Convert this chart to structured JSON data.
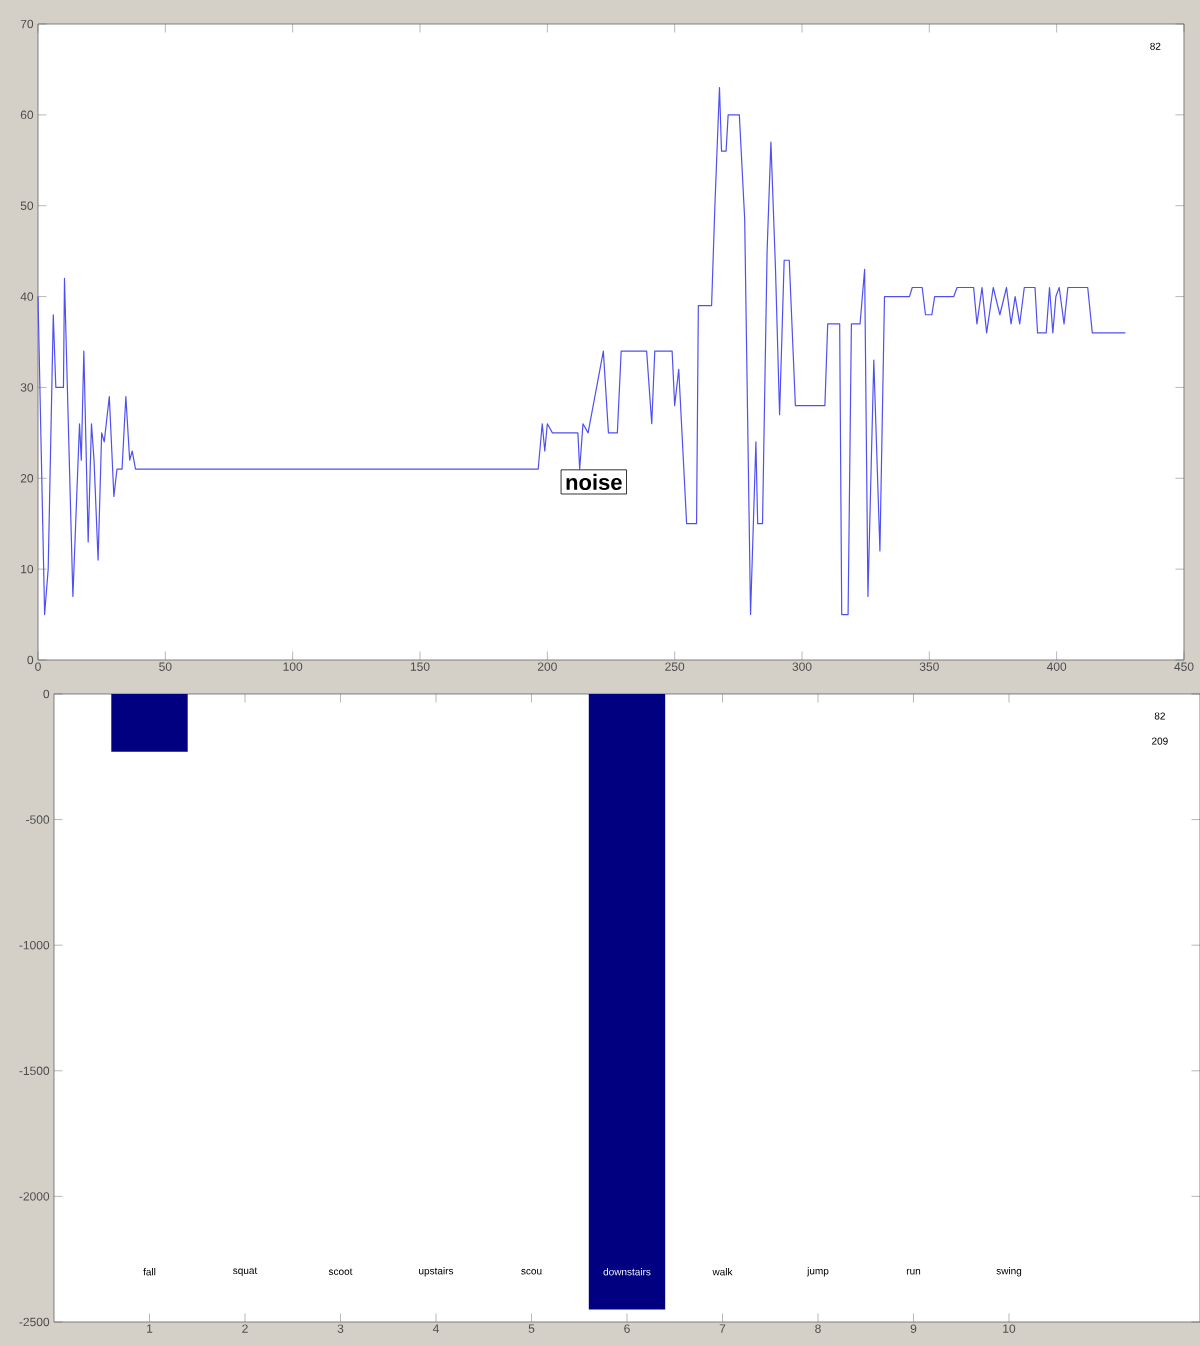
{
  "chart_data": [
    {
      "type": "line",
      "color": "#5050f0",
      "x": [
        0,
        2.6,
        4,
        6,
        7,
        10,
        10.4,
        13.7,
        16.3,
        17,
        18,
        19.7,
        21,
        22,
        23.6,
        25,
        26,
        28,
        29.8,
        31,
        33,
        34.5,
        36,
        37,
        38.3,
        196.4,
        198,
        199,
        200,
        202,
        212,
        212.7,
        214,
        216,
        222,
        224,
        227.5,
        229,
        239,
        241,
        242.2,
        249,
        250,
        251.6,
        254.7,
        258.6,
        259.3,
        264.5,
        265.8,
        267.6,
        268.4,
        270.2,
        271,
        275.4,
        277.5,
        279.8,
        281.9,
        282.6,
        284.5,
        286.3,
        287.8,
        289.6,
        291.2,
        293,
        295,
        297.4,
        309,
        310.1,
        314.8,
        315.6,
        318.1,
        319.4,
        322.8,
        324.6,
        325.9,
        328.2,
        330.6,
        332.4,
        342.2,
        343.3,
        347.2,
        348.5,
        351,
        352.1,
        359.6,
        360.9,
        367.4,
        368.7,
        370.7,
        372.5,
        375.1,
        377.7,
        380.3,
        382.1,
        383.7,
        385.5,
        387.3,
        391.5,
        392.5,
        395.9,
        397.2,
        398.5,
        399.7,
        401,
        402.9,
        404.4,
        412.2,
        414,
        427
      ],
      "values": [
        40,
        5,
        10,
        38,
        30,
        30,
        42,
        7,
        26,
        22,
        34,
        13,
        26,
        22,
        11,
        25,
        24,
        29,
        18,
        21,
        21,
        29,
        22,
        23,
        21,
        21,
        26,
        23,
        26,
        25,
        25,
        21,
        26,
        25,
        34,
        25,
        25,
        34,
        34,
        26,
        34,
        34,
        28,
        32,
        15,
        15,
        39,
        39,
        50,
        63,
        56,
        56,
        60,
        60,
        48.5,
        5,
        24,
        15,
        15,
        45,
        57,
        43,
        27,
        44,
        44,
        28,
        28,
        37,
        37,
        5,
        5,
        37,
        37,
        43,
        7,
        33,
        12,
        40,
        40,
        41,
        41,
        38,
        38,
        40,
        40,
        41,
        41,
        37,
        41,
        36,
        41,
        38,
        41,
        37,
        40,
        37,
        41,
        41,
        36,
        36,
        41,
        36,
        40,
        41,
        37,
        41,
        41,
        36,
        36
      ],
      "xlim": [
        0,
        450
      ],
      "xticks": [
        0,
        50,
        100,
        150,
        200,
        250,
        300,
        350,
        400,
        450
      ],
      "ylim": [
        0,
        70
      ],
      "yticks": [
        0,
        10,
        20,
        30,
        40,
        50,
        60,
        70
      ],
      "annotations": [
        "noise",
        "82"
      ]
    },
    {
      "type": "bar",
      "color": "#000080",
      "x": [
        1,
        2,
        3,
        4,
        5,
        6,
        7,
        8,
        9,
        10
      ],
      "values": [
        -230,
        0,
        0,
        0,
        0,
        -2450,
        0,
        0,
        0,
        0
      ],
      "xlim": [
        0,
        12
      ],
      "xticks": [
        1,
        2,
        3,
        4,
        5,
        6,
        7,
        8,
        9,
        10
      ],
      "ylim": [
        -2500,
        0
      ],
      "yticks": [
        -2500,
        -2000,
        -1500,
        -1000,
        -500,
        0
      ],
      "annotations": [
        "82",
        "209",
        "fall",
        "squat",
        "scoot",
        "upstairs",
        "scou",
        "downstairs",
        "walk",
        "jump",
        "run",
        "swing"
      ]
    }
  ]
}
